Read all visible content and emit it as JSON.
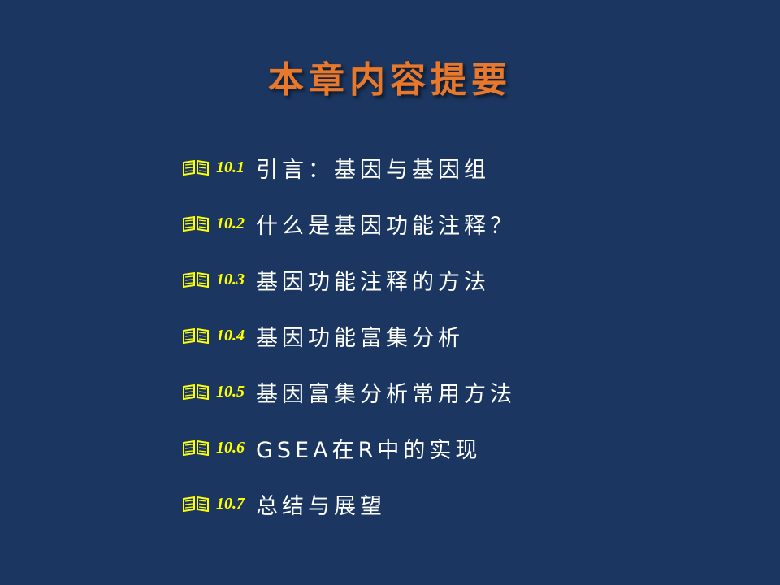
{
  "slide": {
    "title": "本章内容提要",
    "items": [
      {
        "number": "10.1",
        "text": "引言：基因与基因组"
      },
      {
        "number": "10.2",
        "text": "什么是基因功能注释？"
      },
      {
        "number": "10.3",
        "text": "基因功能注释的方法"
      },
      {
        "number": "10.4",
        "text": "基因功能富集分析"
      },
      {
        "number": "10.5",
        "text": "基因富集分析常用方法"
      },
      {
        "number": "10.6",
        "text": "GSEA在R中的实现"
      },
      {
        "number": "10.7",
        "text": "总结与展望"
      }
    ],
    "bullet_icon": "open-book-icon",
    "colors": {
      "background": "#1b3761",
      "title": "#e8782c",
      "number": "#ffff00",
      "text": "#ffffff"
    }
  }
}
